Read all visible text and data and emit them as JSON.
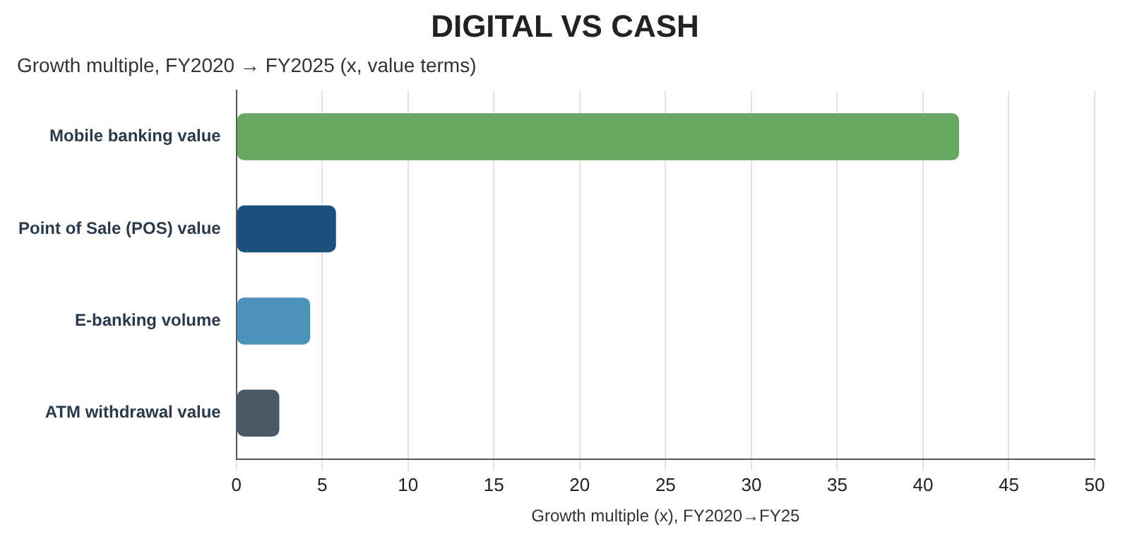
{
  "chart_data": {
    "type": "bar",
    "orientation": "horizontal",
    "title": "DIGITAL VS CASH",
    "subtitle": "Growth multiple, FY2020 → FY2025 (x, value terms)",
    "xlabel": "Growth multiple (x), FY2020→FY25",
    "categories": [
      "Mobile banking value",
      "Point of Sale (POS) value",
      "E-banking volume",
      "ATM withdrawal value"
    ],
    "values": [
      42.1,
      5.8,
      4.3,
      2.5
    ],
    "colors": [
      "#68a862",
      "#1b4f7c",
      "#4b93b9",
      "#4a5968"
    ],
    "xlim": [
      0,
      50
    ],
    "xticks": [
      0,
      5,
      10,
      15,
      20,
      25,
      30,
      35,
      40,
      45,
      50
    ],
    "grid": "x"
  }
}
